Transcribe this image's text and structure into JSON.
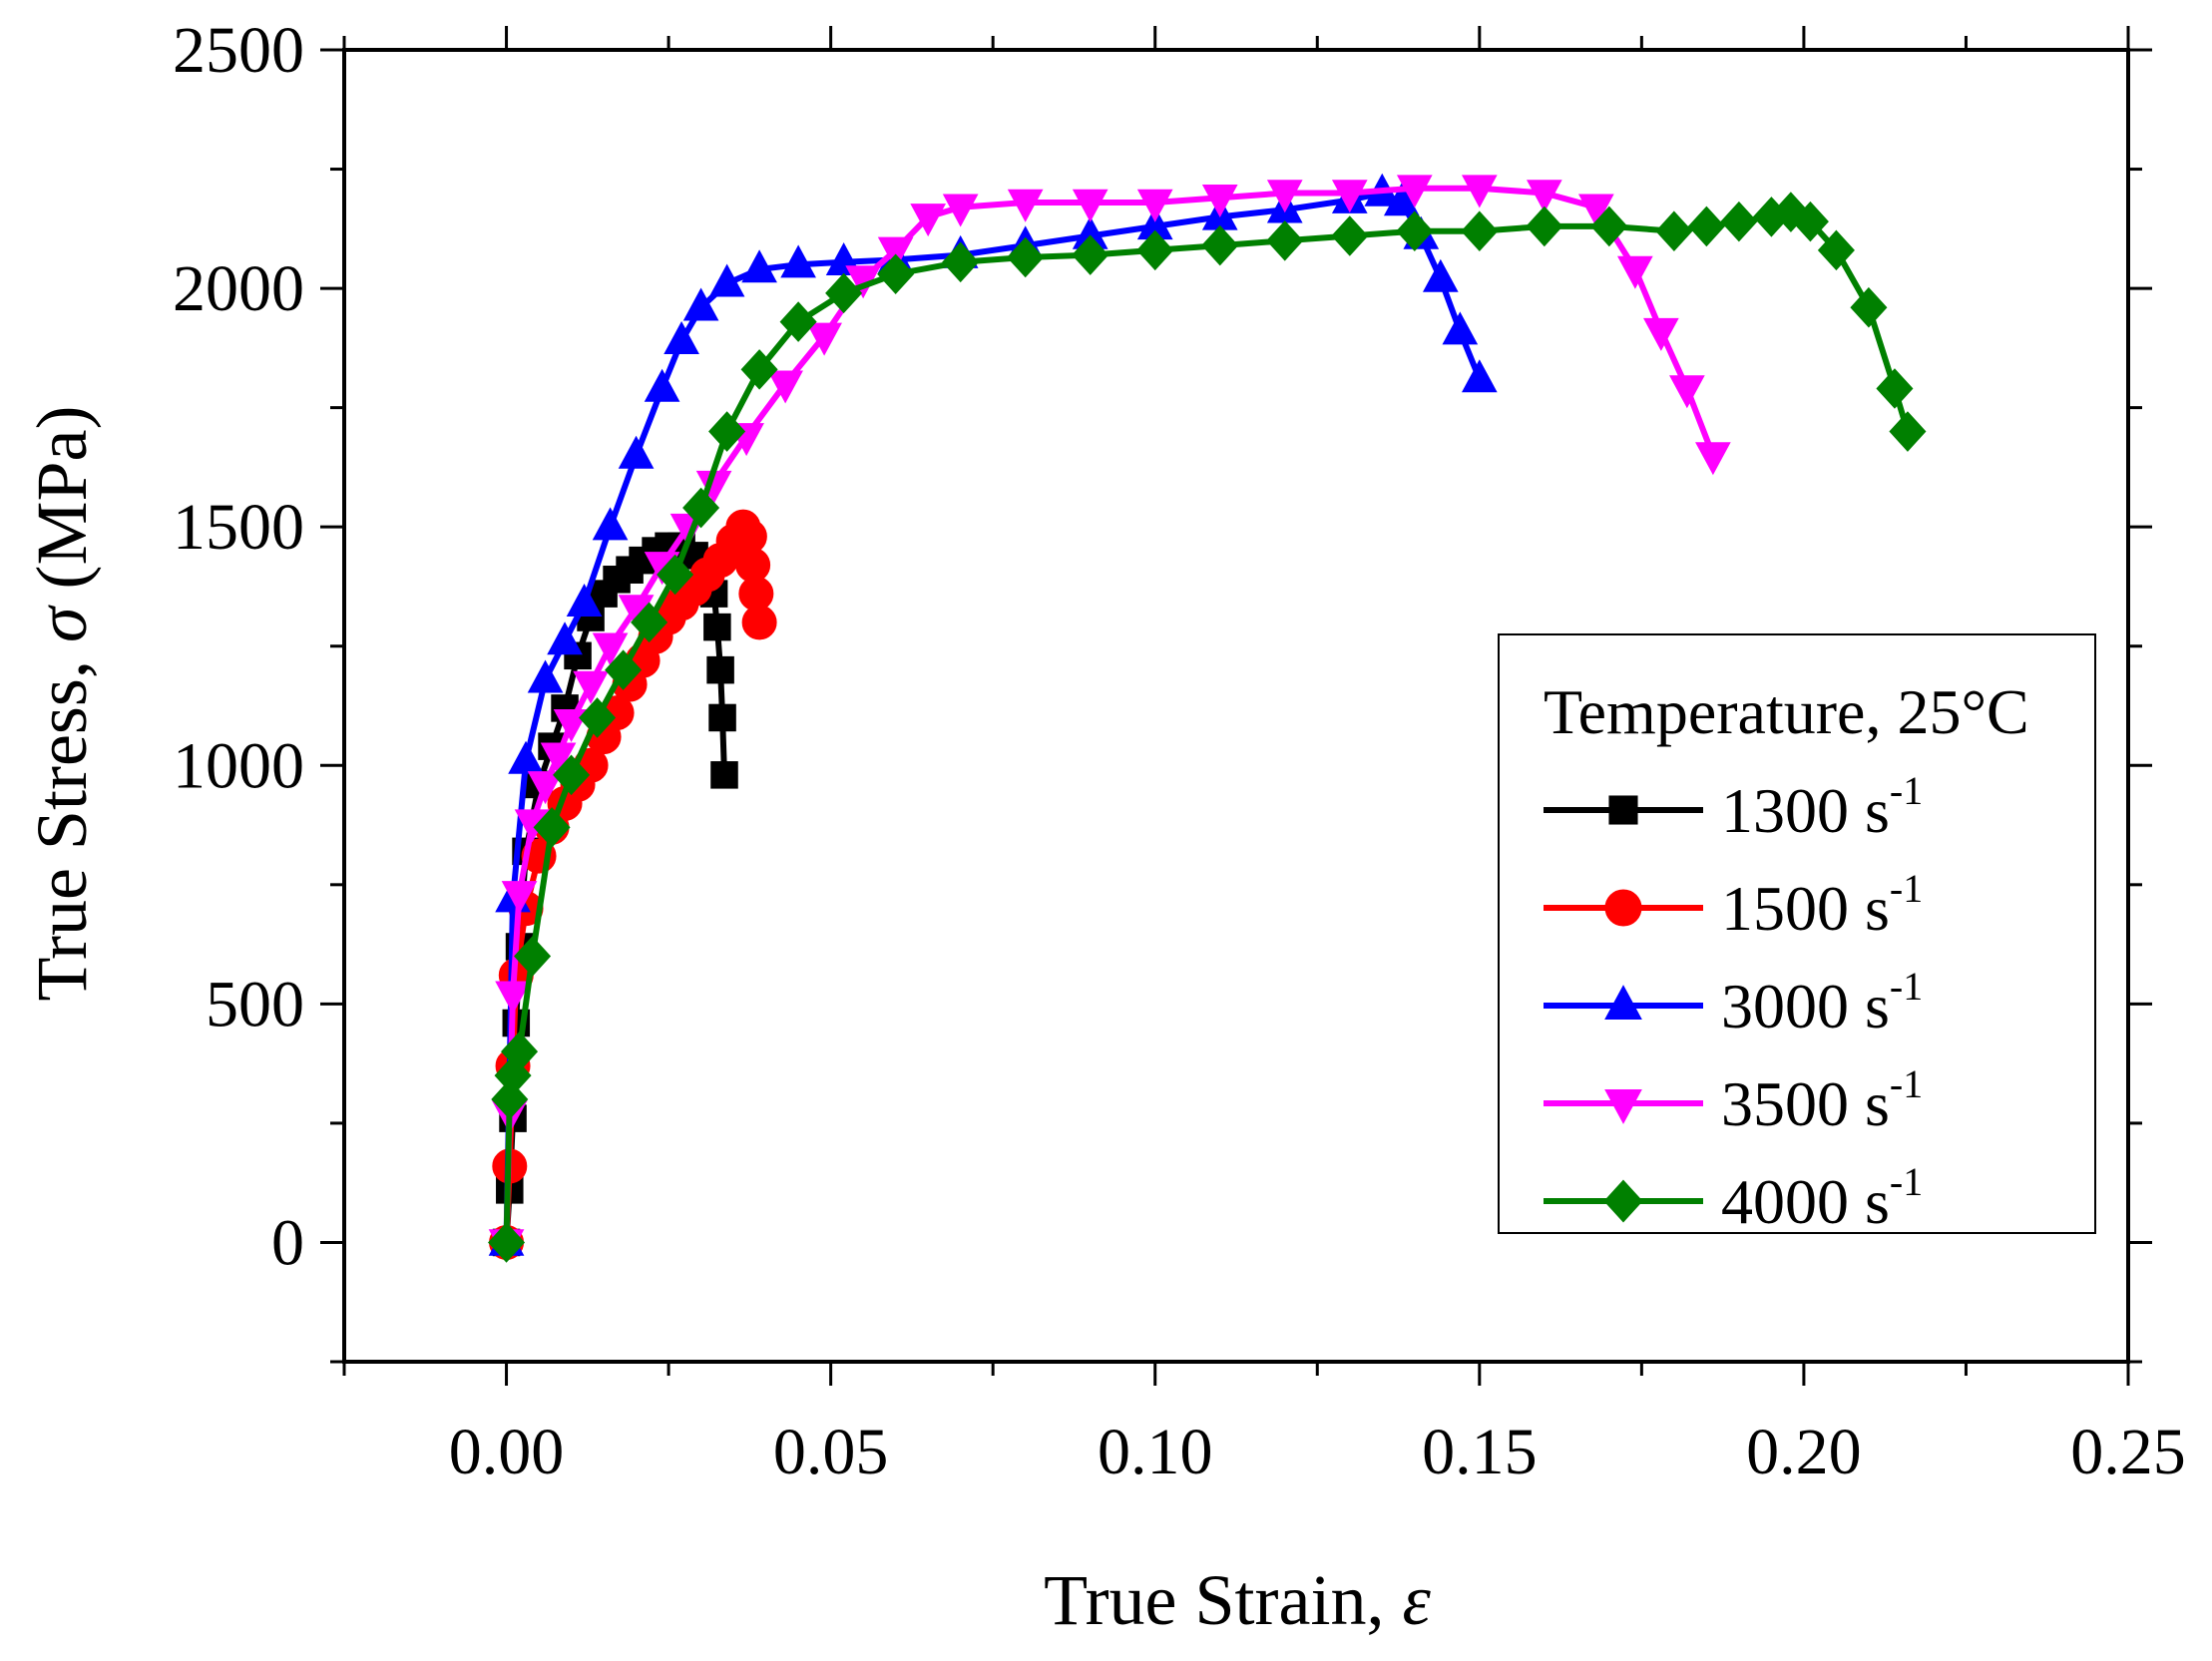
{
  "chart_data": {
    "type": "line",
    "title": "",
    "xlabel": "True Strain, ",
    "xlabel_symbol": "ε",
    "ylabel": "True Stress, ",
    "ylabel_symbol": "σ",
    "ylabel_unit": " (MPa)",
    "xlim": [
      -0.025,
      0.25
    ],
    "ylim": [
      -250,
      2500
    ],
    "x_ticks": [
      0.0,
      0.05,
      0.1,
      0.15,
      0.2,
      0.25
    ],
    "x_tick_labels": [
      "0.00",
      "0.05",
      "0.10",
      "0.15",
      "0.20",
      "0.25"
    ],
    "y_ticks": [
      0,
      500,
      1000,
      1500,
      2000,
      2500
    ],
    "y_tick_labels": [
      "0",
      "500",
      "1000",
      "1500",
      "2000",
      "2500"
    ],
    "grid": false,
    "legend_position": "right",
    "legend_title": "Temperature, 25°C",
    "series": [
      {
        "name": "1300 s",
        "sup": "-1",
        "color": "#000000",
        "marker": "square",
        "x": [
          0.0,
          0.0005,
          0.001,
          0.0015,
          0.002,
          0.003,
          0.005,
          0.007,
          0.009,
          0.011,
          0.013,
          0.015,
          0.017,
          0.019,
          0.021,
          0.023,
          0.025,
          0.027,
          0.029,
          0.031,
          0.032,
          0.0325,
          0.033,
          0.0333,
          0.0336
        ],
        "y": [
          0,
          110,
          260,
          460,
          620,
          820,
          960,
          1040,
          1120,
          1230,
          1310,
          1360,
          1390,
          1410,
          1430,
          1450,
          1460,
          1460,
          1440,
          1400,
          1360,
          1290,
          1200,
          1100,
          980
        ]
      },
      {
        "name": "1500 s",
        "sup": "-1",
        "color": "#ff0000",
        "marker": "circle",
        "x": [
          0.0,
          0.0005,
          0.001,
          0.0015,
          0.003,
          0.005,
          0.007,
          0.009,
          0.011,
          0.013,
          0.015,
          0.017,
          0.019,
          0.021,
          0.023,
          0.025,
          0.027,
          0.029,
          0.031,
          0.033,
          0.035,
          0.0365,
          0.0375,
          0.038,
          0.0385,
          0.039
        ],
        "y": [
          0,
          160,
          370,
          560,
          700,
          810,
          870,
          920,
          960,
          1000,
          1060,
          1110,
          1170,
          1220,
          1270,
          1310,
          1340,
          1370,
          1400,
          1430,
          1470,
          1500,
          1480,
          1420,
          1360,
          1300
        ]
      },
      {
        "name": "3000 s",
        "sup": "-1",
        "color": "#0000ff",
        "marker": "triangle-up",
        "x": [
          0.0,
          0.001,
          0.003,
          0.006,
          0.009,
          0.012,
          0.016,
          0.02,
          0.024,
          0.027,
          0.03,
          0.034,
          0.039,
          0.045,
          0.052,
          0.06,
          0.07,
          0.08,
          0.09,
          0.1,
          0.11,
          0.12,
          0.13,
          0.135,
          0.138,
          0.141,
          0.144,
          0.147,
          0.15
        ],
        "y": [
          0,
          720,
          1010,
          1180,
          1260,
          1340,
          1500,
          1650,
          1790,
          1890,
          1960,
          2010,
          2040,
          2050,
          2055,
          2060,
          2070,
          2090,
          2110,
          2130,
          2150,
          2165,
          2185,
          2200,
          2180,
          2110,
          2020,
          1910,
          1810
        ]
      },
      {
        "name": "3500 s",
        "sup": "-1",
        "color": "#ff00ff",
        "marker": "triangle-down",
        "x": [
          0.0,
          0.0005,
          0.001,
          0.002,
          0.004,
          0.006,
          0.008,
          0.01,
          0.013,
          0.016,
          0.02,
          0.024,
          0.028,
          0.032,
          0.037,
          0.043,
          0.049,
          0.055,
          0.06,
          0.065,
          0.07,
          0.08,
          0.09,
          0.1,
          0.11,
          0.12,
          0.13,
          0.14,
          0.15,
          0.16,
          0.168,
          0.174,
          0.178,
          0.182,
          0.186
        ],
        "y": [
          0,
          270,
          520,
          730,
          880,
          960,
          1020,
          1090,
          1170,
          1250,
          1330,
          1420,
          1500,
          1590,
          1690,
          1800,
          1900,
          2020,
          2080,
          2150,
          2170,
          2180,
          2180,
          2180,
          2190,
          2200,
          2200,
          2210,
          2210,
          2200,
          2170,
          2040,
          1910,
          1790,
          1650
        ]
      },
      {
        "name": "4000 s",
        "sup": "-1",
        "color": "#008000",
        "marker": "diamond",
        "x": [
          0.0,
          0.0005,
          0.001,
          0.002,
          0.004,
          0.007,
          0.01,
          0.014,
          0.018,
          0.022,
          0.026,
          0.03,
          0.034,
          0.039,
          0.045,
          0.052,
          0.06,
          0.07,
          0.08,
          0.09,
          0.1,
          0.11,
          0.12,
          0.13,
          0.14,
          0.15,
          0.16,
          0.17,
          0.18,
          0.185,
          0.19,
          0.195,
          0.198,
          0.201,
          0.205,
          0.21,
          0.214,
          0.216
        ],
        "y": [
          0,
          300,
          350,
          400,
          600,
          870,
          980,
          1100,
          1200,
          1300,
          1400,
          1540,
          1700,
          1830,
          1930,
          1990,
          2030,
          2055,
          2065,
          2070,
          2080,
          2090,
          2100,
          2110,
          2120,
          2120,
          2130,
          2130,
          2120,
          2130,
          2140,
          2150,
          2160,
          2140,
          2080,
          1960,
          1790,
          1700
        ]
      }
    ]
  }
}
